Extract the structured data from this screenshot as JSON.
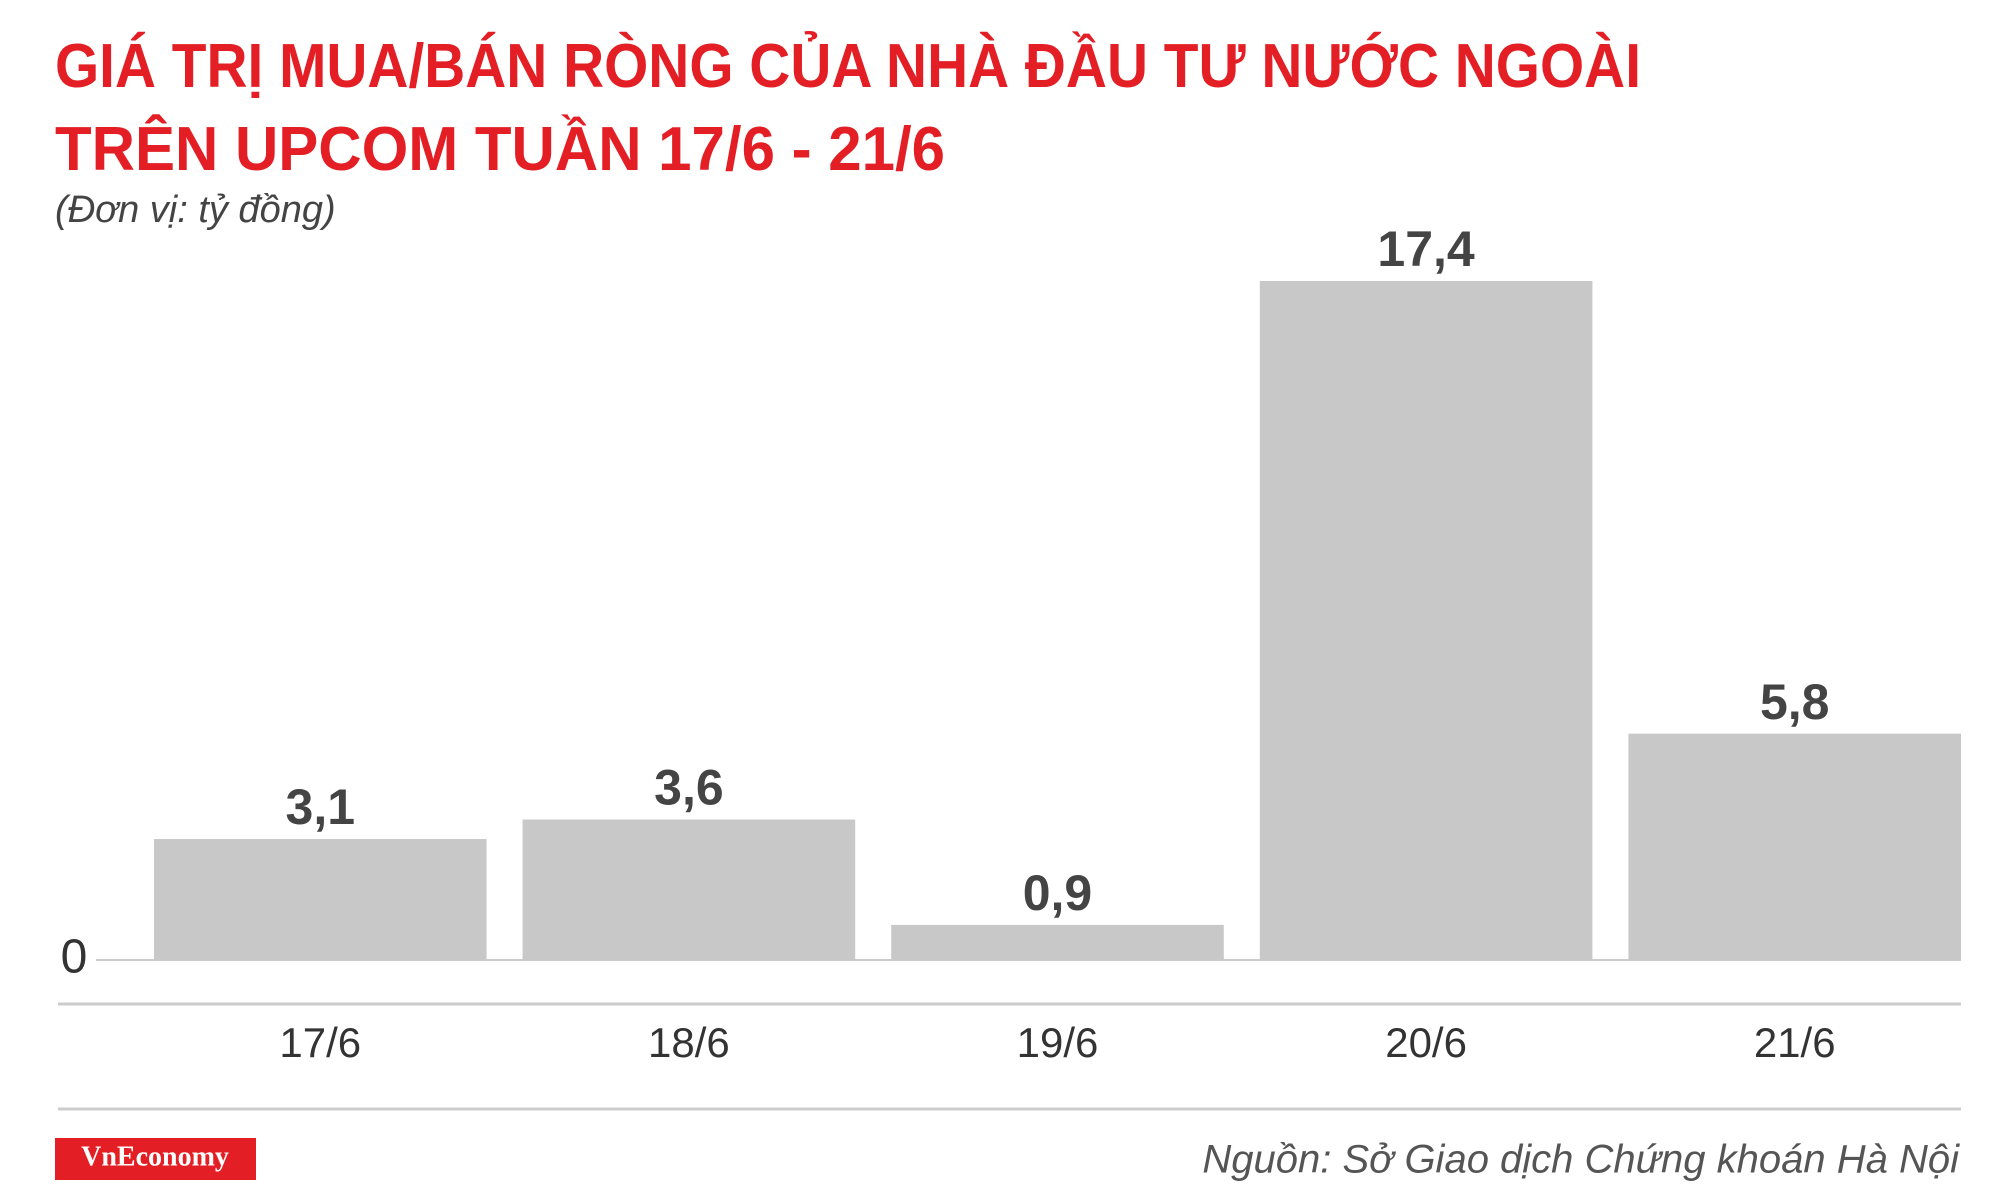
{
  "chart_data": {
    "type": "bar",
    "title": [
      "GIÁ TRỊ MUA/BÁN RÒNG CỦA NHÀ ĐẦU TƯ NƯỚC NGOÀI",
      "TRÊN UPCOM TUẦN 17/6 - 21/6"
    ],
    "subtitle": "(Đơn vị: tỷ đồng)",
    "categories": [
      "17/6",
      "18/6",
      "19/6",
      "20/6",
      "21/6"
    ],
    "values": [
      3.1,
      3.6,
      0.9,
      17.4,
      5.8
    ],
    "value_labels": [
      "3,1",
      "3,6",
      "0,9",
      "17,4",
      "5,8"
    ],
    "color": "#c8c8c8",
    "ylim": [
      0,
      17.4
    ],
    "yticks": [
      0
    ],
    "logo": "VnEconomy",
    "source": "Nguồn: Sở Giao dịch Chứng khoán Hà Nội"
  }
}
